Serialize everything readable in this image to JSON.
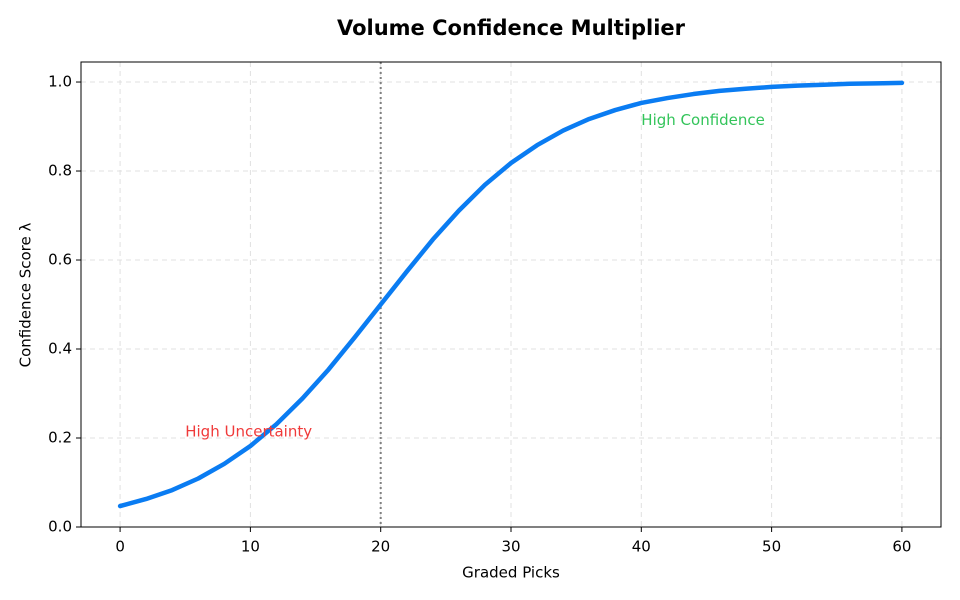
{
  "chart_data": {
    "type": "line",
    "title": "Volume Confidence Multiplier",
    "xlabel": "Graded Picks",
    "ylabel": "Confidence Score λ",
    "x": [
      0,
      2,
      4,
      6,
      8,
      10,
      12,
      14,
      16,
      18,
      20,
      22,
      24,
      26,
      28,
      30,
      32,
      34,
      36,
      38,
      40,
      42,
      44,
      46,
      48,
      50,
      52,
      54,
      56,
      58,
      60
    ],
    "values": [
      0.047,
      0.063,
      0.083,
      0.109,
      0.142,
      0.182,
      0.231,
      0.289,
      0.354,
      0.426,
      0.5,
      0.574,
      0.646,
      0.711,
      0.769,
      0.818,
      0.858,
      0.891,
      0.917,
      0.937,
      0.953,
      0.964,
      0.973,
      0.98,
      0.985,
      0.989,
      0.992,
      0.994,
      0.996,
      0.997,
      0.998
    ],
    "color": "#0a7cf2",
    "xlim": [
      -3,
      63
    ],
    "ylim": [
      0,
      1.045
    ],
    "xticks": [
      0,
      10,
      20,
      30,
      40,
      50,
      60
    ],
    "yticks": [
      {
        "value": 0,
        "label": "0.0"
      },
      {
        "value": 0.2,
        "label": "0.2"
      },
      {
        "value": 0.4,
        "label": "0.4"
      },
      {
        "value": 0.6,
        "label": "0.6"
      },
      {
        "value": 0.8,
        "label": "0.8"
      },
      {
        "value": 1,
        "label": "1.0"
      }
    ],
    "grid": true,
    "vline": 20,
    "annotations": [
      {
        "text": "High Uncertainty",
        "x": 5,
        "y": 0.2,
        "color": "#f03a3a"
      },
      {
        "text": "High Confidence",
        "x": 40,
        "y": 0.9,
        "color": "#33c45a"
      }
    ]
  }
}
